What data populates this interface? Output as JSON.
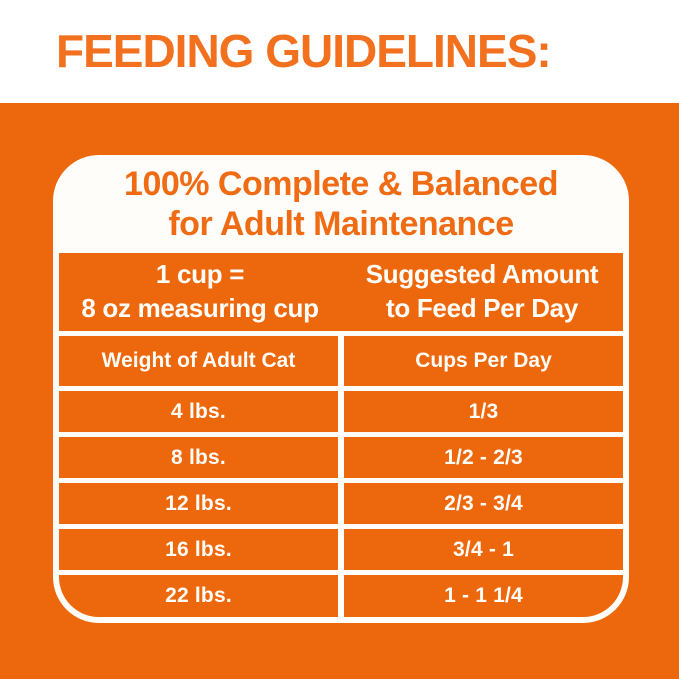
{
  "header": {
    "title": "FEEDING GUIDELINES:"
  },
  "colors": {
    "panel_orange": "#ED680C",
    "title_orange": "#F2711F",
    "card_title_orange": "#EF6C15",
    "cell_text_white": "#FFFDF9",
    "card_border_white": "#FFFDFA"
  },
  "table": {
    "title_line1": "100% Complete & Balanced",
    "title_line2": "for Adult Maintenance",
    "col1_header": {
      "line1": "1 cup =",
      "line2": "8 oz measuring cup"
    },
    "col2_header": {
      "line1": "Suggested Amount",
      "line2": "to Feed Per Day"
    },
    "subheaders": {
      "weight": "Weight of Adult Cat",
      "cups": "Cups Per Day"
    },
    "rows": [
      {
        "weight": "4 lbs.",
        "cups": "1/3"
      },
      {
        "weight": "8 lbs.",
        "cups": "1/2 - 2/3"
      },
      {
        "weight": "12 lbs.",
        "cups": "2/3 - 3/4"
      },
      {
        "weight": "16 lbs.",
        "cups": "3/4 - 1"
      },
      {
        "weight": "22 lbs.",
        "cups": "1 - 1 1/4"
      }
    ]
  },
  "chart_data": {
    "type": "table",
    "title": "FEEDING GUIDELINES:",
    "subtitle": "100% Complete & Balanced for Adult Maintenance",
    "measure_note": "1 cup = 8 oz measuring cup",
    "value_note": "Suggested Amount to Feed Per Day",
    "columns": [
      "Weight of Adult Cat",
      "Cups Per Day"
    ],
    "rows": [
      [
        "4 lbs.",
        "1/3"
      ],
      [
        "8 lbs.",
        "1/2 - 2/3"
      ],
      [
        "12 lbs.",
        "2/3 - 3/4"
      ],
      [
        "16 lbs.",
        "3/4 - 1"
      ],
      [
        "22 lbs.",
        "1 - 1 1/4"
      ]
    ]
  }
}
